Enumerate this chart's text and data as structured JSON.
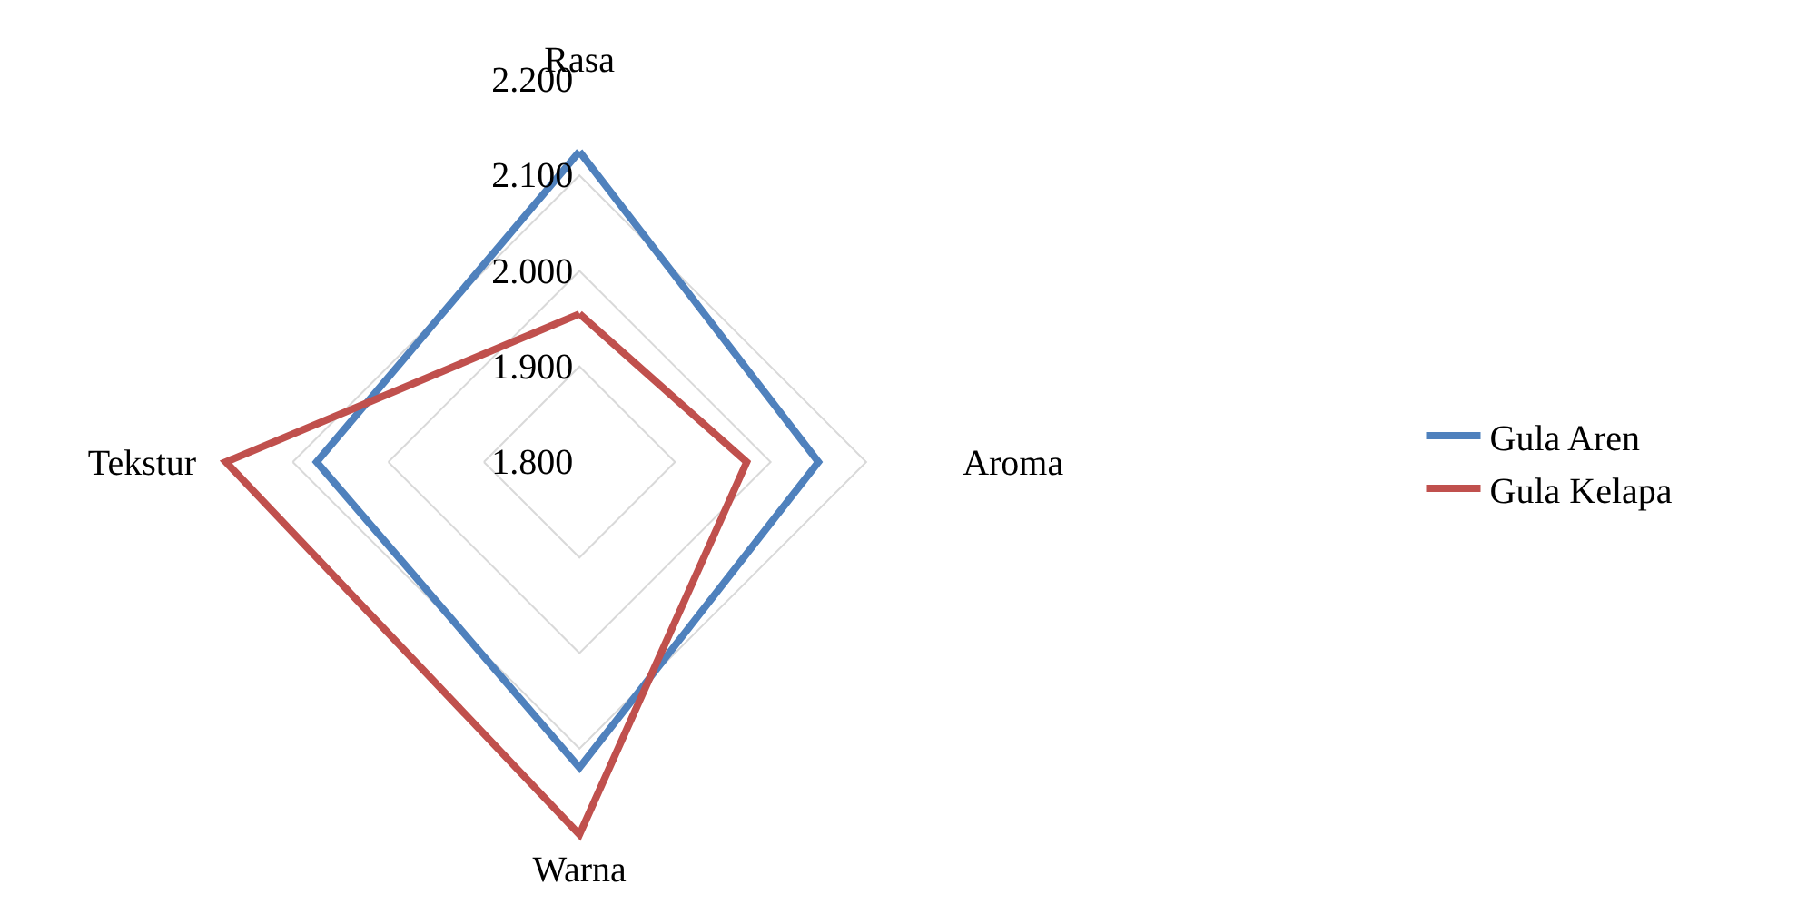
{
  "chart_data": {
    "type": "radar",
    "categories": [
      "Rasa",
      "Aroma",
      "Warna",
      "Tekstur"
    ],
    "series": [
      {
        "name": "Gula Aren",
        "color": "#4f81bd",
        "values": [
          2.125,
          2.05,
          2.12,
          2.075
        ]
      },
      {
        "name": "Gula Kelapa",
        "color": "#c0504d",
        "values": [
          1.955,
          1.975,
          2.19,
          2.17
        ]
      }
    ],
    "ylim": [
      1.8,
      2.2
    ],
    "yticks": [
      {
        "value": 1.8,
        "label": "1.800"
      },
      {
        "value": 1.9,
        "label": "1.900"
      },
      {
        "value": 2.0,
        "label": "2.000"
      },
      {
        "value": 2.1,
        "label": "2.100"
      },
      {
        "value": 2.2,
        "label": "2.200"
      }
    ],
    "grid": true,
    "legend": "right",
    "marker": "none",
    "line_style": "solid"
  }
}
